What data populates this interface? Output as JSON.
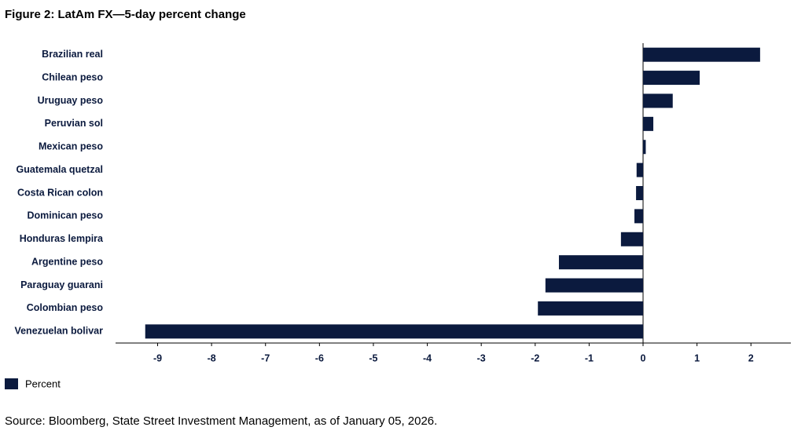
{
  "chart_data": {
    "type": "bar",
    "orientation": "horizontal",
    "title": "Figure 2: LatAm FX—5-day percent change",
    "categories": [
      "Brazilian real",
      "Chilean peso",
      "Uruguay peso",
      "Peruvian sol",
      "Mexican peso",
      "Guatemala quetzal",
      "Costa Rican colon",
      "Dominican peso",
      "Honduras lempira",
      "Argentine peso",
      "Paraguay guarani",
      "Colombian peso",
      "Venezuelan bolivar"
    ],
    "series": [
      {
        "name": "Percent",
        "color": "#0b1a3e",
        "values": [
          2.17,
          1.05,
          0.55,
          0.19,
          0.05,
          -0.12,
          -0.13,
          -0.16,
          -0.41,
          -1.56,
          -1.81,
          -1.95,
          -9.23
        ]
      }
    ],
    "xlim": [
      -9.78,
      2.74
    ],
    "xticks": [
      -9,
      -8,
      -7,
      -6,
      -5,
      -4,
      -3,
      -2,
      -1,
      0,
      1,
      2
    ],
    "source": "Source: Bloomberg, State Street Investment Management, as of January 05, 2026."
  }
}
